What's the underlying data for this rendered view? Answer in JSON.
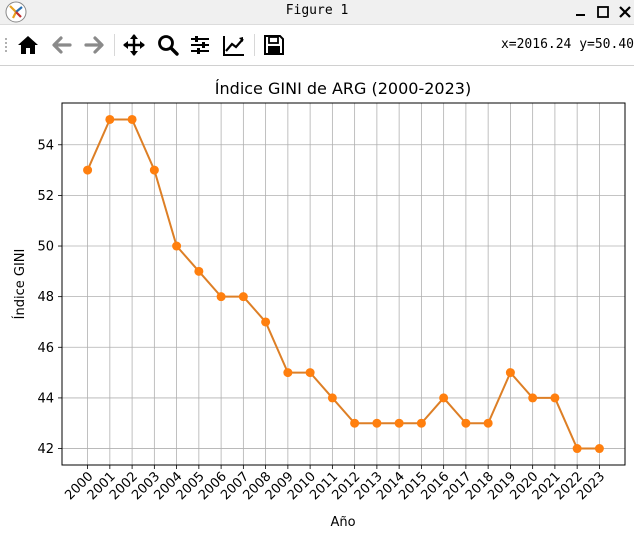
{
  "window": {
    "title": "Figure 1",
    "icons": [
      "app-icon",
      "minimize-icon",
      "maximize-icon",
      "close-icon"
    ]
  },
  "toolbar": {
    "tools": [
      "home-icon",
      "back-icon",
      "forward-icon",
      "pan-icon",
      "zoom-icon",
      "configure-subplots-icon",
      "edit-axis-icon",
      "save-icon"
    ],
    "coordinates": "x=2016.24 y=50.40"
  },
  "colors": {
    "series": "#ff7f0e",
    "series_line": "#dd7f26",
    "grid": "#b0b0b0",
    "toolbar_icon": "#000000",
    "titlebar_bg": "#f0f0f0"
  },
  "chart_data": {
    "type": "line",
    "title": "Índice GINI de ARG (2000-2023)",
    "xlabel": "Año",
    "ylabel": "Índice GINI",
    "x": [
      2000,
      2001,
      2002,
      2003,
      2004,
      2005,
      2006,
      2007,
      2008,
      2009,
      2010,
      2011,
      2012,
      2013,
      2014,
      2015,
      2016,
      2017,
      2018,
      2019,
      2020,
      2021,
      2022,
      2023
    ],
    "x_tick_labels": [
      "2000",
      "2001",
      "2002",
      "2003",
      "2004",
      "2005",
      "2006",
      "2007",
      "2008",
      "2009",
      "2010",
      "2011",
      "2012",
      "2013",
      "2014",
      "2015",
      "2016",
      "2017",
      "2018",
      "2019",
      "2020",
      "2021",
      "2022",
      "2023"
    ],
    "series": [
      {
        "values": [
          53,
          55,
          55,
          53,
          50,
          49,
          48,
          48,
          47,
          45,
          45,
          44,
          43,
          43,
          43,
          43,
          44,
          43,
          43,
          45,
          44,
          44,
          42,
          42
        ]
      }
    ],
    "y_ticks": [
      42,
      44,
      46,
      48,
      50,
      52,
      54
    ],
    "ylim": [
      41.35,
      55.65
    ],
    "xlim": [
      1998.85,
      2024.15
    ],
    "grid": true,
    "marker": "circle"
  }
}
